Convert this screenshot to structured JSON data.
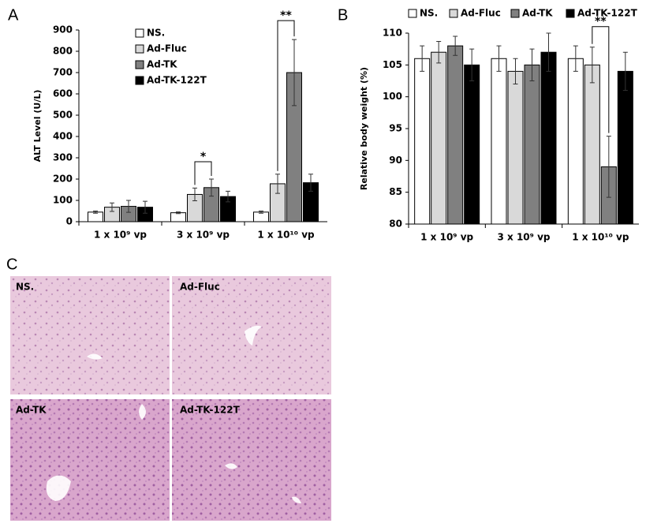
{
  "panel_labels": [
    "A",
    "B",
    "C"
  ],
  "chart_data": [
    {
      "type": "bar",
      "y_label": "ALT Level (U/L)",
      "categories": [
        "1 x 10⁹ vp",
        "3 x 10⁹ vp",
        "1 x 10¹⁰ vp"
      ],
      "ylim": [
        0,
        900
      ],
      "yticks": [
        0,
        100,
        200,
        300,
        400,
        500,
        600,
        700,
        800,
        900
      ],
      "legend": "upper center",
      "annotations": [
        "*",
        "**"
      ],
      "series": [
        {
          "name": "NS.",
          "color": "#ffffff",
          "values": [
            45,
            42,
            45
          ],
          "errors": [
            5,
            4,
            5
          ]
        },
        {
          "name": "Ad-Fluc",
          "color": "#d9d9d9",
          "values": [
            68,
            128,
            178
          ],
          "errors": [
            20,
            30,
            45
          ]
        },
        {
          "name": "Ad-TK",
          "color": "#808080",
          "values": [
            72,
            160,
            700
          ],
          "errors": [
            28,
            40,
            155
          ]
        },
        {
          "name": "Ad-TK-122T",
          "color": "#000000",
          "values": [
            68,
            118,
            183
          ],
          "errors": [
            28,
            25,
            40
          ]
        }
      ]
    },
    {
      "type": "bar",
      "y_label": "Relative body weight (%)",
      "categories": [
        "1 x 10⁹ vp",
        "3 x 10⁹ vp",
        "1 x 10¹⁰ vp"
      ],
      "ylim": [
        80,
        110
      ],
      "yticks": [
        80,
        85,
        90,
        95,
        100,
        105,
        110
      ],
      "legend": "top",
      "annotations": [
        "**"
      ],
      "series": [
        {
          "name": "NS.",
          "color": "#ffffff",
          "values": [
            106,
            106,
            106
          ],
          "errors": [
            2,
            2,
            2
          ]
        },
        {
          "name": "Ad-Fluc",
          "color": "#d9d9d9",
          "values": [
            107,
            104,
            105
          ],
          "errors": [
            1.7,
            2,
            2.8
          ]
        },
        {
          "name": "Ad-TK",
          "color": "#808080",
          "values": [
            108,
            105,
            89
          ],
          "errors": [
            1.5,
            2.5,
            4.8
          ]
        },
        {
          "name": "Ad-TK-122T",
          "color": "#000000",
          "values": [
            105,
            107,
            104
          ],
          "errors": [
            2.5,
            3,
            3
          ]
        }
      ]
    }
  ],
  "histology": {
    "labels": [
      "NS.",
      "Ad-Fluc",
      "Ad-TK",
      "Ad-TK-122T"
    ]
  }
}
